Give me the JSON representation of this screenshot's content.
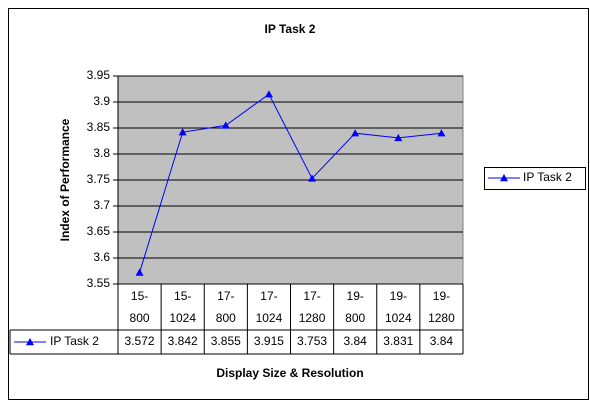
{
  "chart_data": {
    "type": "line",
    "title": "IP Task 2",
    "x_label": "Display Size & Resolution",
    "y_label": "Index of Performance",
    "categories": [
      "15-800",
      "15-1024",
      "17-800",
      "17-1024",
      "17-1280",
      "19-800",
      "19-1024",
      "19-1280"
    ],
    "series": [
      {
        "name": "IP Task 2",
        "color": "#0000ff",
        "values": [
          3.572,
          3.842,
          3.855,
          3.915,
          3.753,
          3.84,
          3.831,
          3.84
        ]
      }
    ],
    "ylim": [
      3.55,
      3.95
    ],
    "yticks": [
      3.55,
      3.6,
      3.65,
      3.7,
      3.75,
      3.8,
      3.85,
      3.9,
      3.95
    ],
    "grid": true,
    "legend": "right",
    "plot_background": "#c0c0c0",
    "data_table": true
  }
}
